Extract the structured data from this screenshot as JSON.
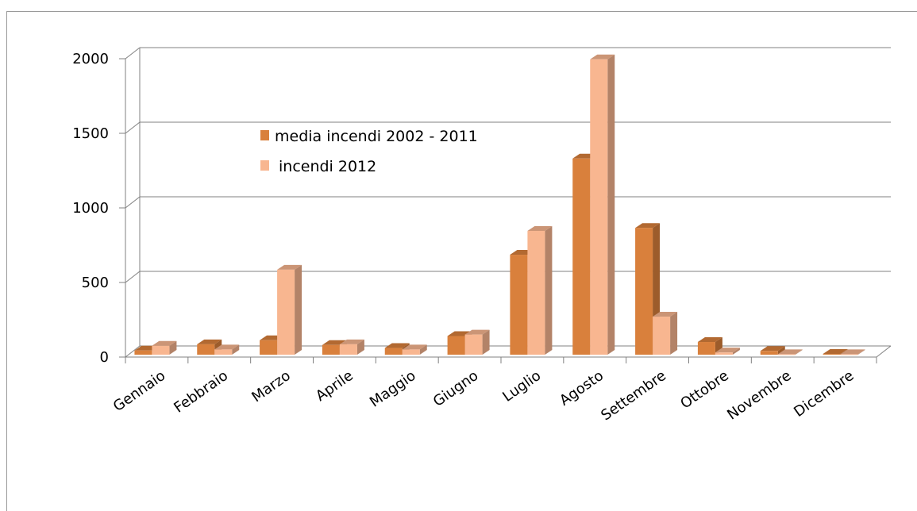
{
  "chart_data": {
    "type": "bar",
    "categories": [
      "Gennaio",
      "Febbraio",
      "Marzo",
      "Aprile",
      "Maggio",
      "Giugno",
      "Luglio",
      "Agosto",
      "Settembre",
      "Ottobre",
      "Novembre",
      "Dicembre"
    ],
    "series": [
      {
        "name": "media incendi 2002 - 2011",
        "color": "#d9803c",
        "values": [
          28,
          70,
          97,
          65,
          45,
          125,
          670,
          1315,
          850,
          85,
          25,
          5
        ]
      },
      {
        "name": "incendi 2012",
        "color": "#f8b690",
        "values": [
          60,
          35,
          570,
          70,
          35,
          135,
          830,
          1980,
          255,
          15,
          3,
          3
        ]
      }
    ],
    "yticks": [
      0,
      500,
      1000,
      1500,
      2000
    ],
    "ylim": [
      0,
      2000
    ],
    "legend_position": "upper-left inside plot",
    "grid": true
  }
}
